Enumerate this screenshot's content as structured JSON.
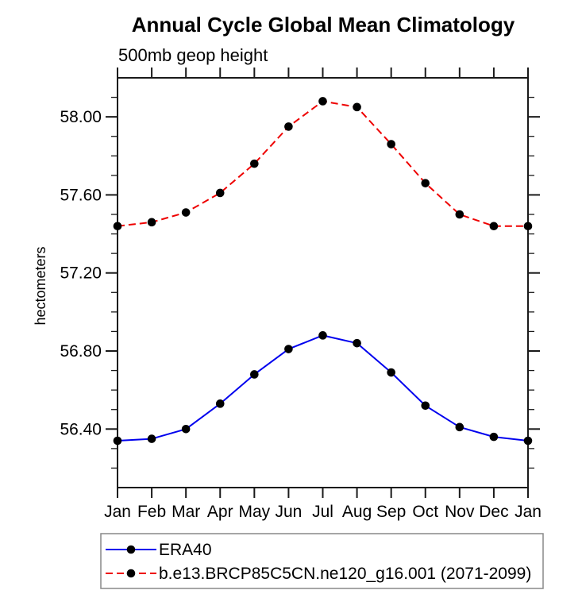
{
  "chart_data": {
    "type": "line",
    "title": "Annual Cycle Global Mean Climatology",
    "subtitle": "500mb geop height",
    "xlabel": "",
    "ylabel": "hectometers",
    "categories": [
      "Jan",
      "Feb",
      "Mar",
      "Apr",
      "May",
      "Jun",
      "Jul",
      "Aug",
      "Sep",
      "Oct",
      "Nov",
      "Dec",
      "Jan"
    ],
    "ylim": [
      56.1,
      58.2
    ],
    "y_major_ticks": [
      56.4,
      56.8,
      57.2,
      57.6,
      58.0
    ],
    "y_minor_step": 0.1,
    "grid": false,
    "legend_position": "bottom-outside",
    "axis_color": "#1a1a1a",
    "marker_shape": "filled-circle",
    "series": [
      {
        "name": "ERA40",
        "color": "#0000ee",
        "style": "solid",
        "marker_color": "#000000",
        "values": [
          56.34,
          56.35,
          56.4,
          56.53,
          56.68,
          56.81,
          56.88,
          56.84,
          56.69,
          56.52,
          56.41,
          56.36,
          56.34
        ]
      },
      {
        "name": "b.e13.BRCP85C5CN.ne120_g16.001 (2071-2099)",
        "color": "#ee0000",
        "style": "dashed",
        "marker_color": "#000000",
        "values": [
          57.44,
          57.46,
          57.51,
          57.61,
          57.76,
          57.95,
          58.08,
          58.05,
          57.86,
          57.66,
          57.5,
          57.44,
          57.44
        ]
      }
    ]
  }
}
